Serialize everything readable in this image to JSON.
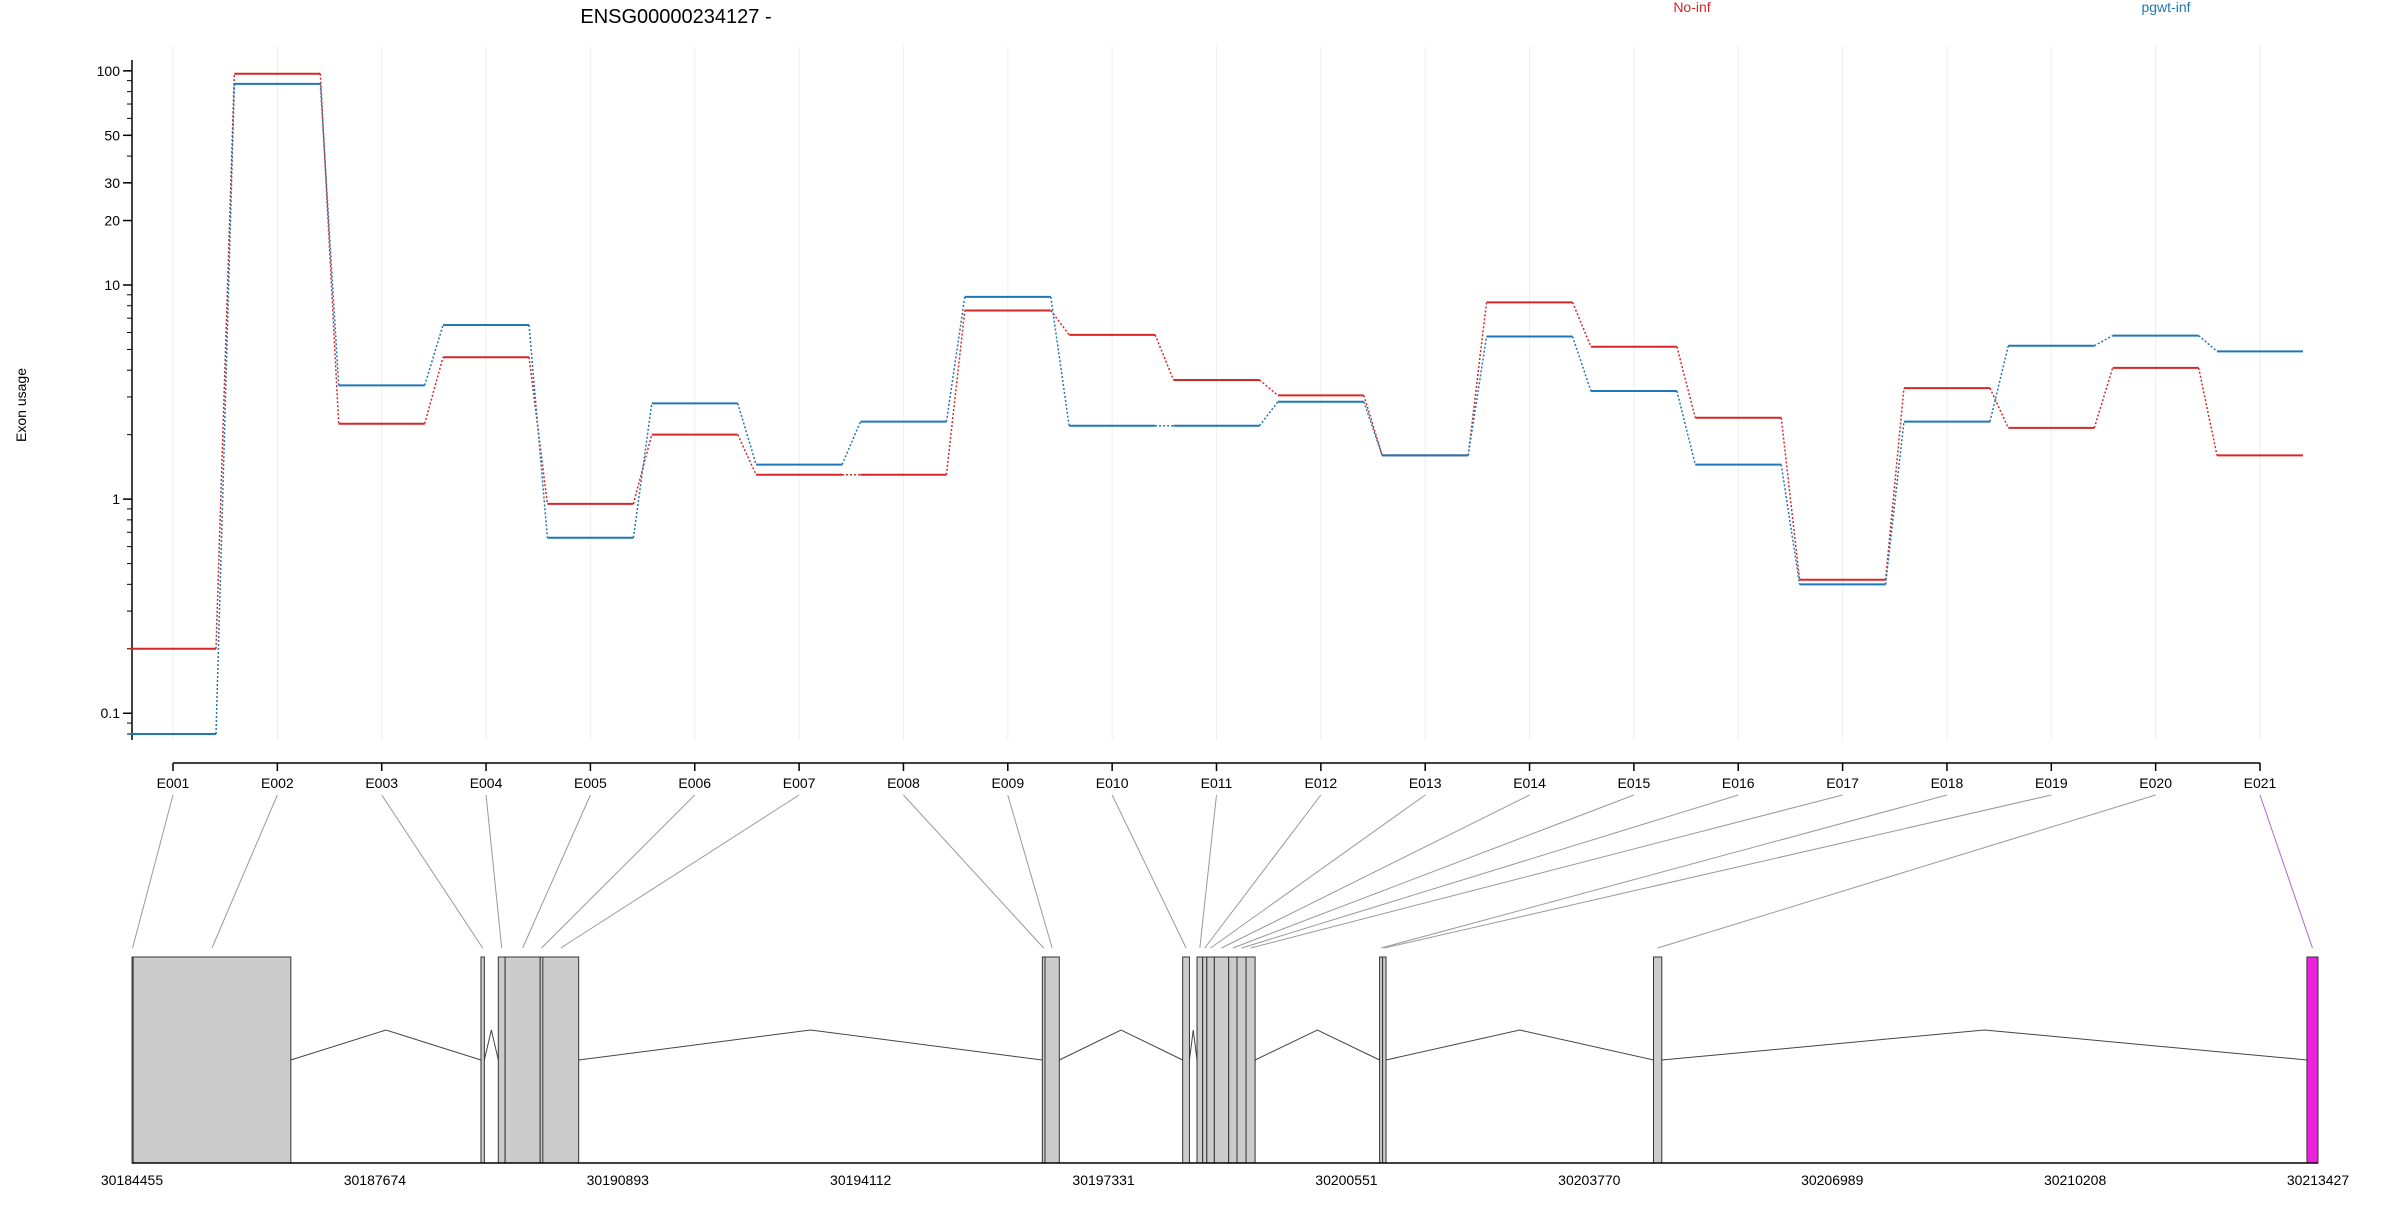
{
  "chart_data": {
    "type": "line",
    "title": "ENSG00000234127 -",
    "ylabel": "Exon usage",
    "y_scale": "log",
    "ylim": [
      0.075,
      110
    ],
    "y_ticks": [
      {
        "value": 100,
        "label": "100"
      },
      {
        "value": 50,
        "label": "50"
      },
      {
        "value": 30,
        "label": "30"
      },
      {
        "value": 20,
        "label": "20"
      },
      {
        "value": 10,
        "label": "10"
      },
      {
        "value": 1,
        "label": "1"
      },
      {
        "value": 0.1,
        "label": "0.1"
      }
    ],
    "grid": "vertical-light",
    "legend_placement": "top-right",
    "categories": [
      "E001",
      "E002",
      "E003",
      "E004",
      "E005",
      "E006",
      "E007",
      "E008",
      "E009",
      "E010",
      "E011",
      "E012",
      "E013",
      "E014",
      "E015",
      "E016",
      "E017",
      "E018",
      "E019",
      "E020",
      "E021"
    ],
    "series": [
      {
        "name": "No-inf",
        "color": "#d62728",
        "values": [
          0.2,
          97,
          2.25,
          4.6,
          0.95,
          2.0,
          1.3,
          1.3,
          7.6,
          5.85,
          3.6,
          3.05,
          1.6,
          8.3,
          5.15,
          2.4,
          0.42,
          3.3,
          2.15,
          4.1,
          1.6
        ]
      },
      {
        "name": "pgwt-inf",
        "color": "#1f77b4",
        "values": [
          0.08,
          87,
          3.4,
          6.5,
          0.66,
          2.8,
          1.45,
          2.3,
          8.8,
          2.2,
          2.2,
          2.85,
          1.6,
          5.75,
          3.2,
          1.45,
          0.4,
          2.3,
          5.2,
          5.8,
          4.9
        ]
      }
    ],
    "gene_model": {
      "coord_ticks": [
        "30184455",
        "30187674",
        "30190893",
        "30194112",
        "30197331",
        "30200551",
        "30203770",
        "30206989",
        "30210208",
        "30213427"
      ],
      "coord_range": [
        30184455,
        30213427
      ],
      "exons": [
        {
          "id": "E001",
          "start": 30184455,
          "end": 30184470,
          "color": "#cccccc"
        },
        {
          "id": "E002",
          "start": 30184470,
          "end": 30186560,
          "color": "#cccccc"
        },
        {
          "id": "E003",
          "start": 30189080,
          "end": 30189125,
          "color": "#cccccc"
        },
        {
          "id": "E004",
          "start": 30189310,
          "end": 30189400,
          "color": "#cccccc"
        },
        {
          "id": "E005",
          "start": 30189400,
          "end": 30189865,
          "color": "#cccccc"
        },
        {
          "id": "E006",
          "start": 30189865,
          "end": 30189900,
          "color": "#cccccc"
        },
        {
          "id": "E007",
          "start": 30189900,
          "end": 30190375,
          "color": "#cccccc"
        },
        {
          "id": "E008",
          "start": 30196520,
          "end": 30196555,
          "color": "#cccccc"
        },
        {
          "id": "E009",
          "start": 30196555,
          "end": 30196745,
          "color": "#cccccc"
        },
        {
          "id": "E010",
          "start": 30198380,
          "end": 30198470,
          "color": "#cccccc"
        },
        {
          "id": "E011",
          "start": 30198570,
          "end": 30198645,
          "color": "#cccccc"
        },
        {
          "id": "E012",
          "start": 30198645,
          "end": 30198700,
          "color": "#cccccc"
        },
        {
          "id": "E013",
          "start": 30198700,
          "end": 30198800,
          "color": "#cccccc"
        },
        {
          "id": "E014",
          "start": 30198800,
          "end": 30198990,
          "color": "#cccccc"
        },
        {
          "id": "E015",
          "start": 30198990,
          "end": 30199100,
          "color": "#cccccc"
        },
        {
          "id": "E016",
          "start": 30199100,
          "end": 30199220,
          "color": "#cccccc"
        },
        {
          "id": "E017",
          "start": 30199220,
          "end": 30199340,
          "color": "#cccccc"
        },
        {
          "id": "E018",
          "start": 30200990,
          "end": 30201030,
          "color": "#cccccc"
        },
        {
          "id": "E019",
          "start": 30201030,
          "end": 30201075,
          "color": "#cccccc"
        },
        {
          "id": "E020",
          "start": 30204620,
          "end": 30204730,
          "color": "#cccccc"
        },
        {
          "id": "E021",
          "start": 30213280,
          "end": 30213427,
          "color": "#ee22dd"
        }
      ]
    }
  }
}
